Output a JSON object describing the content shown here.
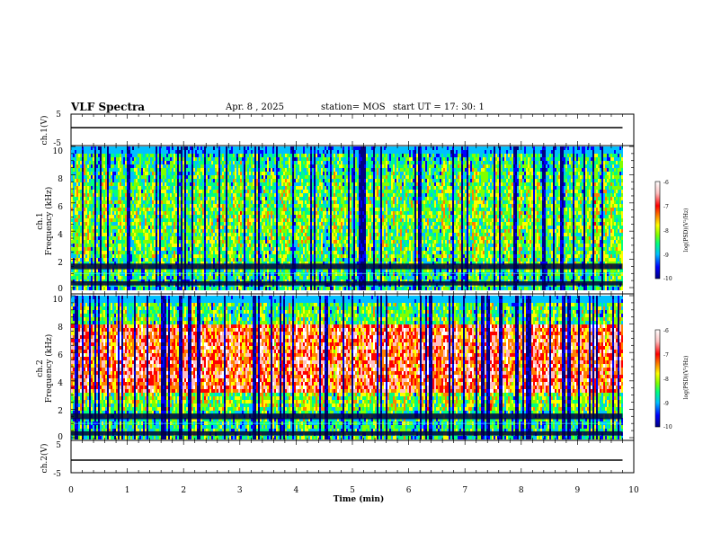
{
  "header": {
    "title": "VLF Spectra",
    "date": "Apr. 8  , 2025",
    "station": "station= MOS",
    "start_ut": "start  UT  =   17: 30: 1"
  },
  "panels": {
    "ch1_wave": {
      "ylabel": "ch.1(V)",
      "yticks": [
        "5",
        "-5"
      ]
    },
    "ch1_spec": {
      "ylabel_line1": "ch.1",
      "ylabel_line2": "Frequency (kHz)",
      "yticks": [
        "0",
        "2",
        "4",
        "6",
        "8",
        "10"
      ]
    },
    "ch2_spec": {
      "ylabel_line1": "ch.2",
      "ylabel_line2": "Frequency (kHz)",
      "yticks": [
        "0",
        "2",
        "4",
        "6",
        "8",
        "10"
      ]
    },
    "ch2_wave": {
      "ylabel": "ch.2(V)",
      "yticks": [
        "5",
        "-5"
      ]
    }
  },
  "colorbar": {
    "label": "log(PSD)(V²/Hz)",
    "ticks": [
      "-6",
      "-7",
      "-8",
      "-9",
      "-10"
    ],
    "colors": [
      "#000080",
      "#0000ff",
      "#00c0ff",
      "#00ff80",
      "#80ff00",
      "#ffff00",
      "#ff8000",
      "#ff0000",
      "#ffc0c0",
      "#ffffff"
    ]
  },
  "xaxis": {
    "label": "Time  (min)",
    "ticks": [
      "0",
      "1",
      "2",
      "3",
      "4",
      "5",
      "6",
      "7",
      "8",
      "9",
      "10"
    ]
  },
  "chart_data": [
    {
      "type": "line",
      "title": "ch.1(V)",
      "x_range": [
        0,
        10
      ],
      "ylim": [
        -5,
        5
      ],
      "x": [
        0,
        9.8
      ],
      "y": [
        0,
        0
      ]
    },
    {
      "type": "heatmap",
      "title": "ch.1 spectrogram",
      "x_range": [
        0,
        9.8
      ],
      "ylim": [
        0,
        10
      ],
      "ylabel": "Frequency (kHz)",
      "zlabel": "log(PSD)(V²/Hz)",
      "zlim": [
        -10,
        -6
      ]
    },
    {
      "type": "heatmap",
      "title": "ch.2 spectrogram",
      "x_range": [
        0,
        9.8
      ],
      "ylim": [
        0,
        10
      ],
      "ylabel": "Frequency (kHz)",
      "zlabel": "log(PSD)(V²/Hz)",
      "zlim": [
        -10,
        -6
      ]
    },
    {
      "type": "line",
      "title": "ch.2(V)",
      "x_range": [
        0,
        10
      ],
      "ylim": [
        -5,
        5
      ],
      "x": [
        0,
        9.8
      ],
      "y": [
        0,
        0
      ]
    }
  ]
}
